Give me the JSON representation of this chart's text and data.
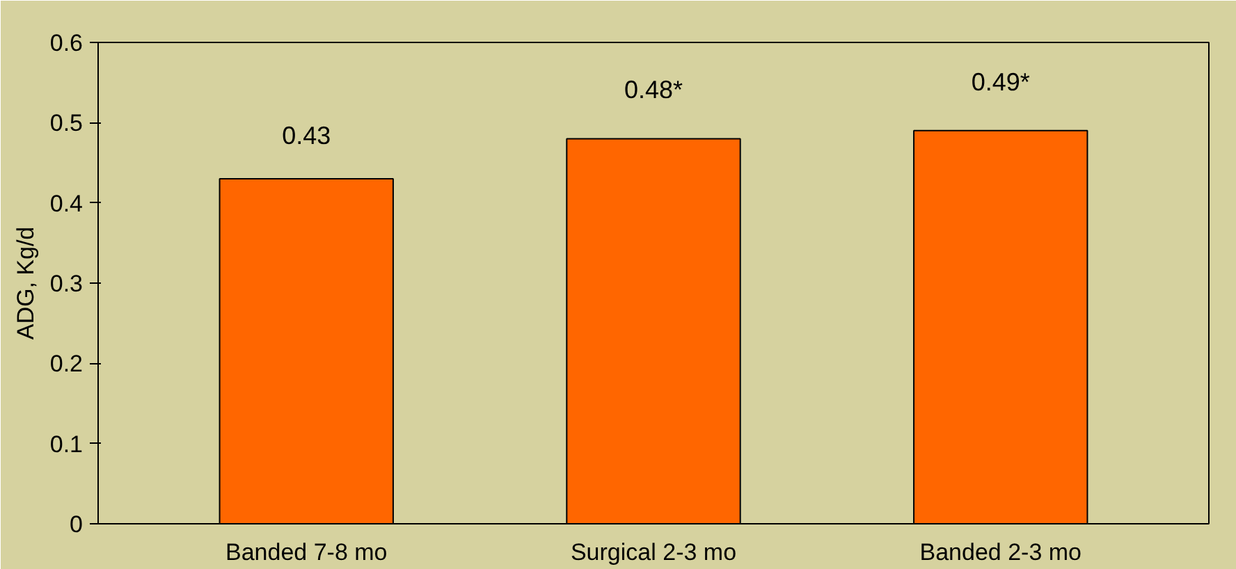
{
  "chart_data": {
    "type": "bar",
    "ylabel": "ADG, Kg/d",
    "categories": [
      "Banded 7-8 mo",
      "Surgical 2-3 mo",
      "Banded 2-3 mo"
    ],
    "values": [
      0.43,
      0.48,
      0.49
    ],
    "value_labels": [
      "0.43",
      "0.48*",
      "0.49*"
    ],
    "color": "#ff6600",
    "ylim": [
      0,
      0.6
    ],
    "yticks": [
      0,
      0.1,
      0.2,
      0.3,
      0.4,
      0.5,
      0.6
    ],
    "grid": false
  }
}
